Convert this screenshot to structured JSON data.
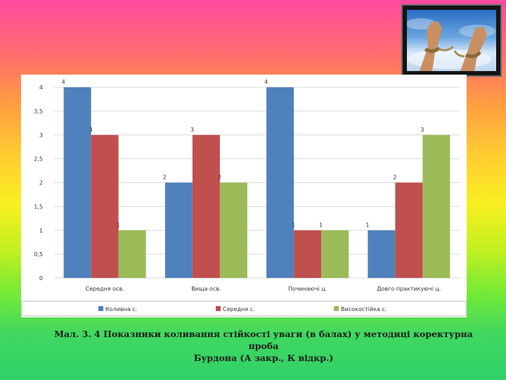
{
  "chart_data": {
    "type": "bar",
    "categories": [
      "Середня осв.",
      "Вища осв.",
      "Починаючі ц.",
      "Довго практикуючі ц."
    ],
    "series": [
      {
        "name": "Коливна с.",
        "color": "#4f81bd",
        "values": [
          4,
          2,
          4,
          1
        ]
      },
      {
        "name": "Середня с.",
        "color": "#c0504d",
        "values": [
          3,
          3,
          1,
          2
        ]
      },
      {
        "name": "Високостійка с.",
        "color": "#9bbb59",
        "values": [
          1,
          2,
          1,
          3
        ]
      }
    ],
    "yticks": [
      "0",
      "0,5",
      "1",
      "1,5",
      "2",
      "2,5",
      "3",
      "3,5",
      "4"
    ],
    "ylim": [
      0,
      4
    ],
    "grid": true,
    "legend_position": "bottom"
  },
  "caption": {
    "line1": "Мал. 3. 4 Показники  коливання стійкості уваги (в балах) у методиці  коректурна проба",
    "line2": "Бурдона (А закр., К відкр.)"
  },
  "icons": {
    "photo": "broken-rope-hands-icon"
  }
}
